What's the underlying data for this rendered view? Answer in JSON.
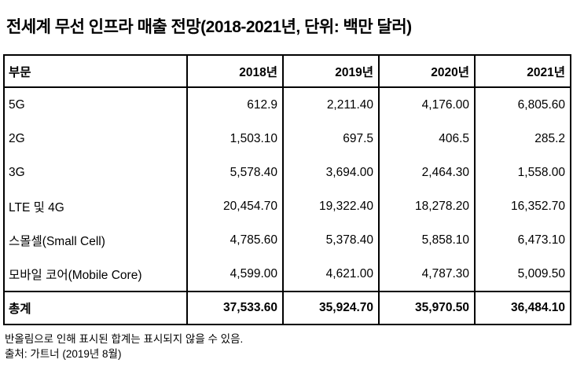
{
  "title": "전세계 무선 인프라 매출 전망(2018-2021년, 단위: 백만 달러)",
  "table": {
    "header": {
      "category": "부문",
      "years": [
        "2018년",
        "2019년",
        "2020년",
        "2021년"
      ]
    },
    "rows": [
      {
        "label": "5G",
        "values": [
          "612.9",
          "2,211.40",
          "4,176.00",
          "6,805.60"
        ]
      },
      {
        "label": "2G",
        "values": [
          "1,503.10",
          "697.5",
          "406.5",
          "285.2"
        ]
      },
      {
        "label": "3G",
        "values": [
          "5,578.40",
          "3,694.00",
          "2,464.30",
          "1,558.00"
        ]
      },
      {
        "label": "LTE 및 4G",
        "values": [
          "20,454.70",
          "19,322.40",
          "18,278.20",
          "16,352.70"
        ]
      },
      {
        "label": "스몰셀(Small Cell)",
        "values": [
          "4,785.60",
          "5,378.40",
          "5,858.10",
          "6,473.10"
        ]
      },
      {
        "label": "모바일 코어(Mobile Core)",
        "values": [
          "4,599.00",
          "4,621.00",
          "4,787.30",
          "5,009.50"
        ]
      }
    ],
    "total": {
      "label": "총계",
      "values": [
        "37,533.60",
        "35,924.70",
        "35,970.50",
        "36,484.10"
      ]
    }
  },
  "footnotes": [
    "반올림으로 인해 표시된 합계는 표시되지 않을 수 있음.",
    "출처: 가트너 (2019년 8월)"
  ],
  "colors": {
    "text": "#000000",
    "border": "#000000",
    "background": "#ffffff"
  },
  "chart_data": {
    "type": "table",
    "title": "전세계 무선 인프라 매출 전망(2018-2021년, 단위: 백만 달러)",
    "unit": "백만 달러",
    "columns": [
      "부문",
      "2018년",
      "2019년",
      "2020년",
      "2021년"
    ],
    "categories": [
      "2018년",
      "2019년",
      "2020년",
      "2021년"
    ],
    "series": [
      {
        "name": "5G",
        "values": [
          612.9,
          2211.4,
          4176.0,
          6805.6
        ]
      },
      {
        "name": "2G",
        "values": [
          1503.1,
          697.5,
          406.5,
          285.2
        ]
      },
      {
        "name": "3G",
        "values": [
          5578.4,
          3694.0,
          2464.3,
          1558.0
        ]
      },
      {
        "name": "LTE 및 4G",
        "values": [
          20454.7,
          19322.4,
          18278.2,
          16352.7
        ]
      },
      {
        "name": "스몰셀(Small Cell)",
        "values": [
          4785.6,
          5378.4,
          5858.1,
          6473.1
        ]
      },
      {
        "name": "모바일 코어(Mobile Core)",
        "values": [
          4599.0,
          4621.0,
          4787.3,
          5009.5
        ]
      }
    ],
    "total": {
      "name": "총계",
      "values": [
        37533.6,
        35924.7,
        35970.5,
        36484.1
      ]
    },
    "notes": [
      "반올림으로 인해 표시된 합계는 표시되지 않을 수 있음.",
      "출처: 가트너 (2019년 8월)"
    ]
  }
}
